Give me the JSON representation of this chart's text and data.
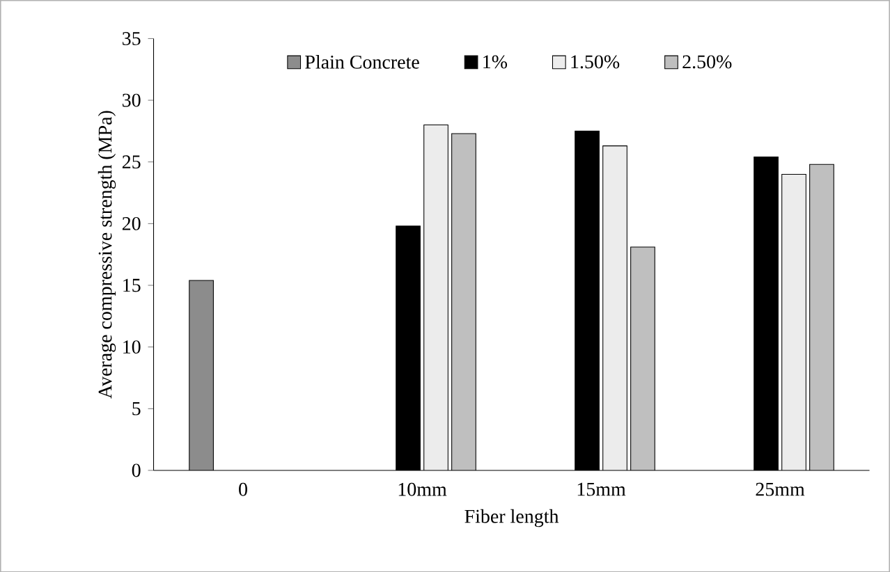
{
  "chart_data": {
    "type": "bar",
    "xlabel": "Fiber length",
    "ylabel": "Average compressive strength (MPa)",
    "categories": [
      "0",
      "10mm",
      "15mm",
      "25mm"
    ],
    "series": [
      {
        "name": "Plain Concrete",
        "color": "#8c8c8c",
        "values": [
          15.4,
          null,
          null,
          null
        ]
      },
      {
        "name": "1%",
        "color": "#000000",
        "values": [
          null,
          19.8,
          27.5,
          25.4
        ]
      },
      {
        "name": "1.50%",
        "color": "#ececec",
        "values": [
          null,
          28.0,
          26.3,
          24.0
        ]
      },
      {
        "name": "2.50%",
        "color": "#bfbfbf",
        "values": [
          null,
          27.3,
          18.1,
          24.8
        ]
      }
    ],
    "ylim": [
      0,
      35
    ],
    "yticks": [
      0,
      5,
      10,
      15,
      20,
      25,
      30,
      35
    ],
    "grid": false,
    "legend": "top"
  }
}
